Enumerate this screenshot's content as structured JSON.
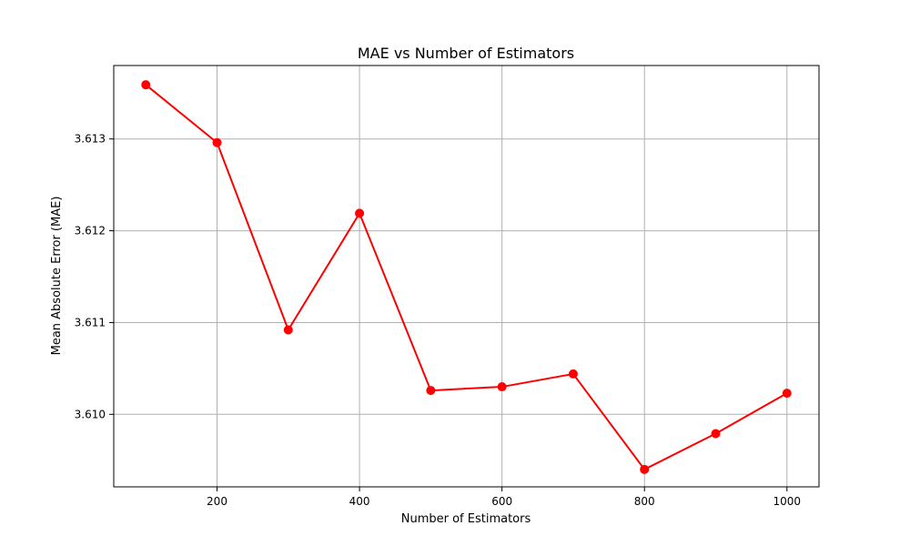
{
  "chart_data": {
    "type": "line",
    "title": "MAE vs Number of Estimators",
    "xlabel": "Number of Estimators",
    "ylabel": "Mean Absolute Error (MAE)",
    "x": [
      100,
      200,
      300,
      400,
      500,
      600,
      700,
      800,
      900,
      1000
    ],
    "series": [
      {
        "values": [
          3.61359,
          3.61296,
          3.61092,
          3.61219,
          3.61026,
          3.6103,
          3.61044,
          3.6094,
          3.60979,
          3.61023
        ],
        "color": "#ff0000",
        "marker": "circle"
      }
    ],
    "xlim": [
      55,
      1045
    ],
    "ylim": [
      3.60921,
      3.6138
    ],
    "xticks": [
      200,
      400,
      600,
      800,
      1000
    ],
    "xtick_labels": [
      "200",
      "400",
      "600",
      "800",
      "1000"
    ],
    "yticks": [
      3.61,
      3.611,
      3.612,
      3.613
    ],
    "ytick_labels": [
      "3.610",
      "3.611",
      "3.612",
      "3.613"
    ],
    "grid": true
  }
}
